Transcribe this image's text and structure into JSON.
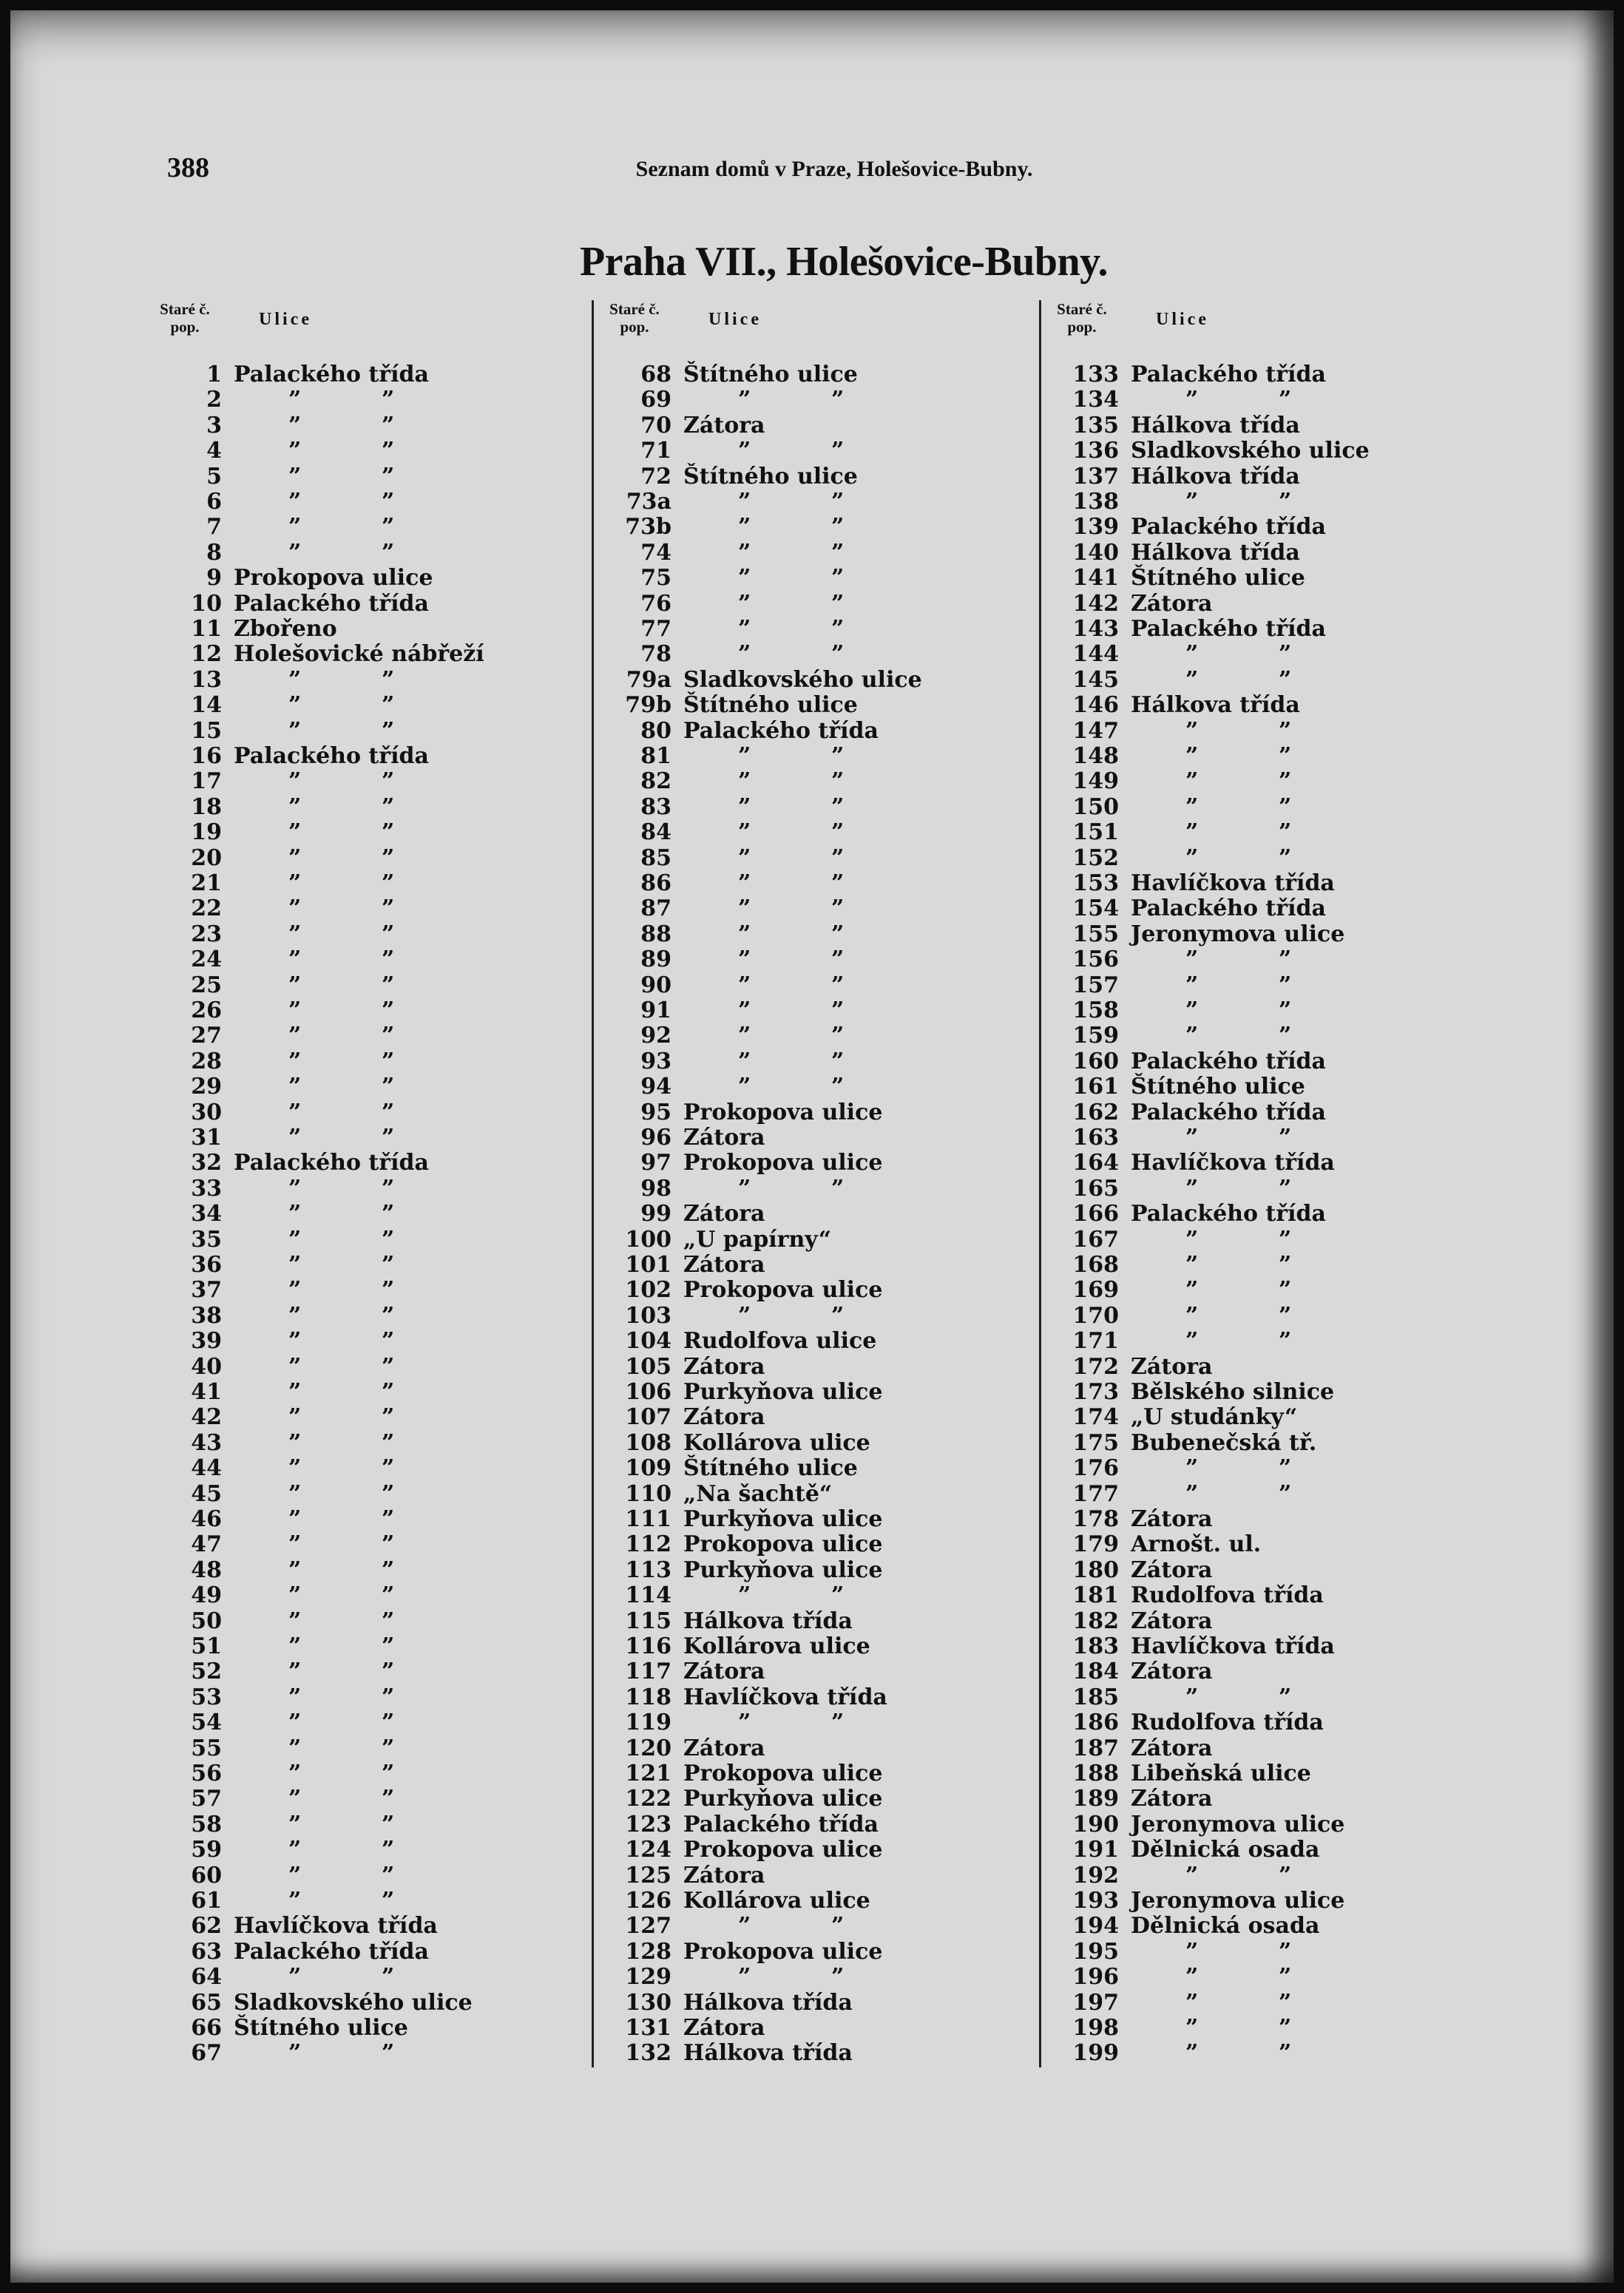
{
  "header": {
    "page_number": "388",
    "running_head": "Seznam domů v Praze, Holešovice-Bubny.",
    "title": "Praha VII., Holešovice-Bubny."
  },
  "column_header": {
    "number_label_line1": "Staré č.",
    "number_label_line2": "pop.",
    "street_label": "Ulice"
  },
  "ditto_mark": "”",
  "columns": [
    {
      "rows": [
        [
          "1",
          "Palackého třída"
        ],
        [
          "2",
          null
        ],
        [
          "3",
          null
        ],
        [
          "4",
          null
        ],
        [
          "5",
          null
        ],
        [
          "6",
          null
        ],
        [
          "7",
          null
        ],
        [
          "8",
          null
        ],
        [
          "9",
          "Prokopova ulice"
        ],
        [
          "10",
          "Palackého třída"
        ],
        [
          "11",
          "Zbořeno"
        ],
        [
          "12",
          "Holešovické nábřeží"
        ],
        [
          "13",
          null
        ],
        [
          "14",
          null
        ],
        [
          "15",
          null
        ],
        [
          "16",
          "Palackého třída"
        ],
        [
          "17",
          null
        ],
        [
          "18",
          null
        ],
        [
          "19",
          null
        ],
        [
          "20",
          null
        ],
        [
          "21",
          null
        ],
        [
          "22",
          null
        ],
        [
          "23",
          null
        ],
        [
          "24",
          null
        ],
        [
          "25",
          null
        ],
        [
          "26",
          null
        ],
        [
          "27",
          null
        ],
        [
          "28",
          null
        ],
        [
          "29",
          null
        ],
        [
          "30",
          null
        ],
        [
          "31",
          null
        ],
        [
          "32",
          "Palackého třída"
        ],
        [
          "33",
          null
        ],
        [
          "34",
          null
        ],
        [
          "35",
          null
        ],
        [
          "36",
          null
        ],
        [
          "37",
          null
        ],
        [
          "38",
          null
        ],
        [
          "39",
          null
        ],
        [
          "40",
          null
        ],
        [
          "41",
          null
        ],
        [
          "42",
          null
        ],
        [
          "43",
          null
        ],
        [
          "44",
          null
        ],
        [
          "45",
          null
        ],
        [
          "46",
          null
        ],
        [
          "47",
          null
        ],
        [
          "48",
          null
        ],
        [
          "49",
          null
        ],
        [
          "50",
          null
        ],
        [
          "51",
          null
        ],
        [
          "52",
          null
        ],
        [
          "53",
          null
        ],
        [
          "54",
          null
        ],
        [
          "55",
          null
        ],
        [
          "56",
          null
        ],
        [
          "57",
          null
        ],
        [
          "58",
          null
        ],
        [
          "59",
          null
        ],
        [
          "60",
          null
        ],
        [
          "61",
          null
        ],
        [
          "62",
          "Havlíčkova třída"
        ],
        [
          "63",
          "Palackého třída"
        ],
        [
          "64",
          null
        ],
        [
          "65",
          "Sladkovského ulice"
        ],
        [
          "66",
          "Štítného ulice"
        ],
        [
          "67",
          null
        ]
      ]
    },
    {
      "rows": [
        [
          "68",
          "Štítného ulice"
        ],
        [
          "69",
          null
        ],
        [
          "70",
          "Zátora"
        ],
        [
          "71",
          null
        ],
        [
          "72",
          "Štítného ulice"
        ],
        [
          "73a",
          null
        ],
        [
          "73b",
          null
        ],
        [
          "74",
          null
        ],
        [
          "75",
          null
        ],
        [
          "76",
          null
        ],
        [
          "77",
          null
        ],
        [
          "78",
          null
        ],
        [
          "79a",
          "Sladkovského ulice"
        ],
        [
          "79b",
          "Štítného ulice"
        ],
        [
          "80",
          "Palackého třída"
        ],
        [
          "81",
          null
        ],
        [
          "82",
          null
        ],
        [
          "83",
          null
        ],
        [
          "84",
          null
        ],
        [
          "85",
          null
        ],
        [
          "86",
          null
        ],
        [
          "87",
          null
        ],
        [
          "88",
          null
        ],
        [
          "89",
          null
        ],
        [
          "90",
          null
        ],
        [
          "91",
          null
        ],
        [
          "92",
          null
        ],
        [
          "93",
          null
        ],
        [
          "94",
          null
        ],
        [
          "95",
          "Prokopova ulice"
        ],
        [
          "96",
          "Zátora"
        ],
        [
          "97",
          "Prokopova ulice"
        ],
        [
          "98",
          null
        ],
        [
          "99",
          "Zátora"
        ],
        [
          "100",
          "„U papírny“"
        ],
        [
          "101",
          "Zátora"
        ],
        [
          "102",
          "Prokopova ulice"
        ],
        [
          "103",
          null
        ],
        [
          "104",
          "Rudolfova ulice"
        ],
        [
          "105",
          "Zátora"
        ],
        [
          "106",
          "Purkyňova ulice"
        ],
        [
          "107",
          "Zátora"
        ],
        [
          "108",
          "Kollárova ulice"
        ],
        [
          "109",
          "Štítného ulice"
        ],
        [
          "110",
          "„Na šachtě“"
        ],
        [
          "111",
          "Purkyňova ulice"
        ],
        [
          "112",
          "Prokopova ulice"
        ],
        [
          "113",
          "Purkyňova ulice"
        ],
        [
          "114",
          null
        ],
        [
          "115",
          "Hálkova třída"
        ],
        [
          "116",
          "Kollárova ulice"
        ],
        [
          "117",
          "Zátora"
        ],
        [
          "118",
          "Havlíčkova třída"
        ],
        [
          "119",
          null
        ],
        [
          "120",
          "Zátora"
        ],
        [
          "121",
          "Prokopova ulice"
        ],
        [
          "122",
          "Purkyňova ulice"
        ],
        [
          "123",
          "Palackého třída"
        ],
        [
          "124",
          "Prokopova ulice"
        ],
        [
          "125",
          "Zátora"
        ],
        [
          "126",
          "Kollárova ulice"
        ],
        [
          "127",
          null
        ],
        [
          "128",
          "Prokopova ulice"
        ],
        [
          "129",
          null
        ],
        [
          "130",
          "Hálkova třída"
        ],
        [
          "131",
          "Zátora"
        ],
        [
          "132",
          "Hálkova třída"
        ]
      ]
    },
    {
      "rows": [
        [
          "133",
          "Palackého třída"
        ],
        [
          "134",
          null
        ],
        [
          "135",
          "Hálkova třída"
        ],
        [
          "136",
          "Sladkovského ulice"
        ],
        [
          "137",
          "Hálkova třída"
        ],
        [
          "138",
          null
        ],
        [
          "139",
          "Palackého třída"
        ],
        [
          "140",
          "Hálkova třída"
        ],
        [
          "141",
          "Štítného ulice"
        ],
        [
          "142",
          "Zátora"
        ],
        [
          "143",
          "Palackého třída"
        ],
        [
          "144",
          null
        ],
        [
          "145",
          null
        ],
        [
          "146",
          "Hálkova třída"
        ],
        [
          "147",
          null
        ],
        [
          "148",
          null
        ],
        [
          "149",
          null
        ],
        [
          "150",
          null
        ],
        [
          "151",
          null
        ],
        [
          "152",
          null
        ],
        [
          "153",
          "Havlíčkova třída"
        ],
        [
          "154",
          "Palackého třída"
        ],
        [
          "155",
          "Jeronymova ulice"
        ],
        [
          "156",
          null
        ],
        [
          "157",
          null
        ],
        [
          "158",
          null
        ],
        [
          "159",
          null
        ],
        [
          "160",
          "Palackého třída"
        ],
        [
          "161",
          "Štítného ulice"
        ],
        [
          "162",
          "Palackého třída"
        ],
        [
          "163",
          null
        ],
        [
          "164",
          "Havlíčkova třída"
        ],
        [
          "165",
          null
        ],
        [
          "166",
          "Palackého třída"
        ],
        [
          "167",
          null
        ],
        [
          "168",
          null
        ],
        [
          "169",
          null
        ],
        [
          "170",
          null
        ],
        [
          "171",
          null
        ],
        [
          "172",
          "Zátora"
        ],
        [
          "173",
          "Bělského silnice"
        ],
        [
          "174",
          "„U studánky“"
        ],
        [
          "175",
          "Bubenečská tř."
        ],
        [
          "176",
          null
        ],
        [
          "177",
          null
        ],
        [
          "178",
          "Zátora"
        ],
        [
          "179",
          "Arnošt. ul."
        ],
        [
          "180",
          "Zátora"
        ],
        [
          "181",
          "Rudolfova třída"
        ],
        [
          "182",
          "Zátora"
        ],
        [
          "183",
          "Havlíčkova třída"
        ],
        [
          "184",
          "Zátora"
        ],
        [
          "185",
          null
        ],
        [
          "186",
          "Rudolfova třída"
        ],
        [
          "187",
          "Zátora"
        ],
        [
          "188",
          "Libeňská ulice"
        ],
        [
          "189",
          "Zátora"
        ],
        [
          "190",
          "Jeronymova ulice"
        ],
        [
          "191",
          "Dělnická osada"
        ],
        [
          "192",
          null
        ],
        [
          "193",
          "Jeronymova ulice"
        ],
        [
          "194",
          "Dělnická osada"
        ],
        [
          "195",
          null
        ],
        [
          "196",
          null
        ],
        [
          "197",
          null
        ],
        [
          "198",
          null
        ],
        [
          "199",
          null
        ]
      ]
    }
  ]
}
